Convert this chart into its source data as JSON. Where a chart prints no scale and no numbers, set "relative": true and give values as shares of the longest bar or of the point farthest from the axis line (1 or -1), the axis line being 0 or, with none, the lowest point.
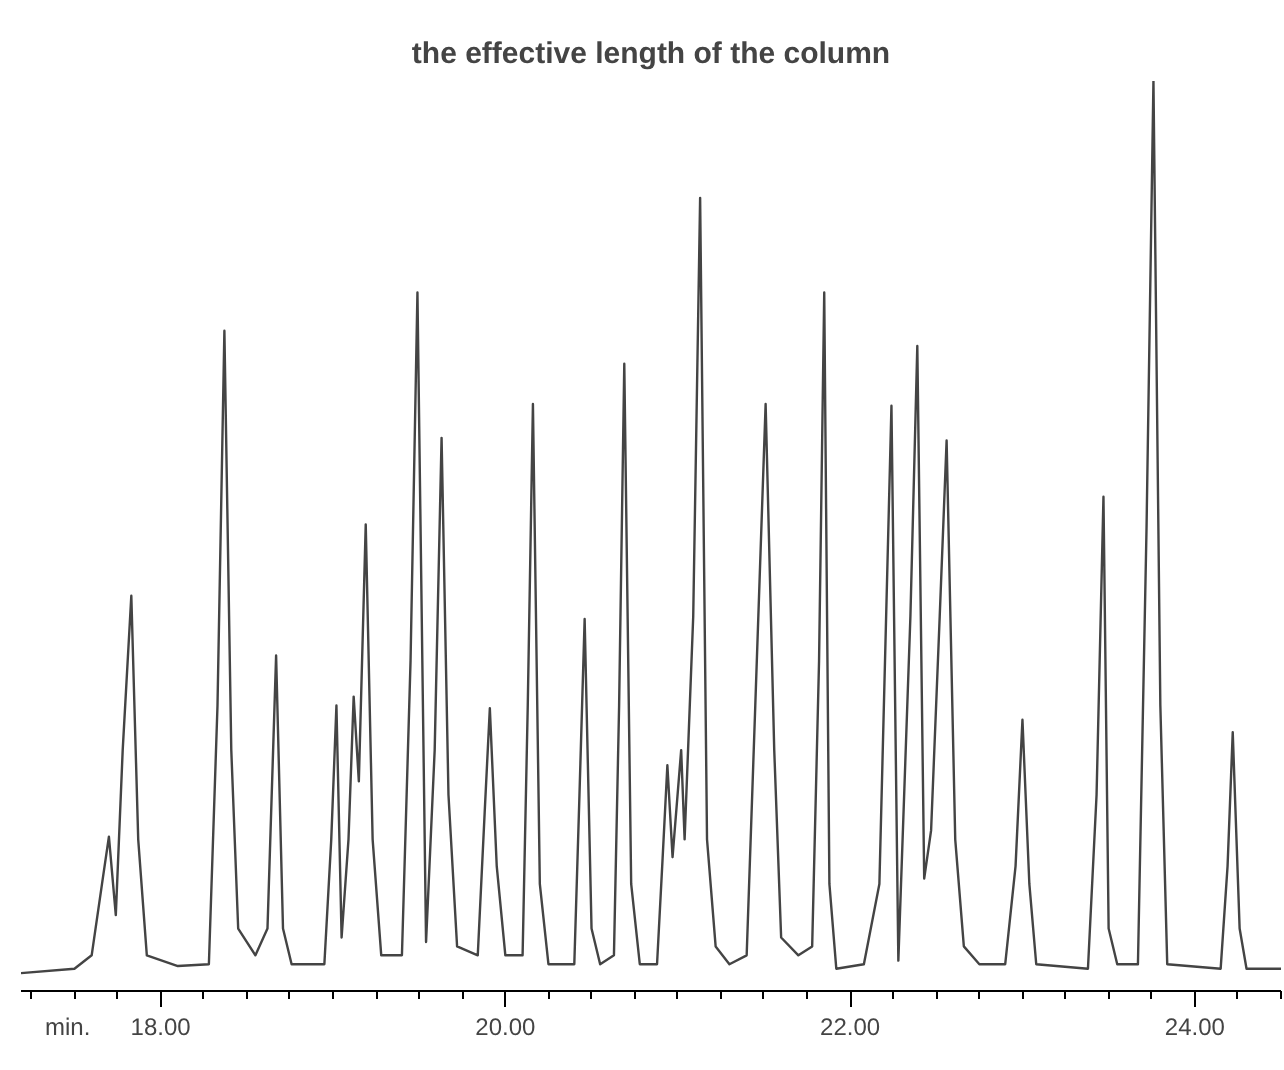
{
  "chart_data": {
    "type": "line",
    "title": "the effective length of the column",
    "xlabel": "min.",
    "relative": true,
    "color": "#444444",
    "grid": false,
    "xlim": [
      17.19,
      24.5
    ],
    "xticks": [
      {
        "value": 17.25,
        "label": null
      },
      {
        "value": 17.5,
        "label": null
      },
      {
        "value": 17.75,
        "label": null
      },
      {
        "value": 18,
        "label": "18.00"
      },
      {
        "value": 18.25,
        "label": null
      },
      {
        "value": 18.5,
        "label": null
      },
      {
        "value": 18.75,
        "label": null
      },
      {
        "value": 19,
        "label": null
      },
      {
        "value": 19.25,
        "label": null
      },
      {
        "value": 19.5,
        "label": null
      },
      {
        "value": 19.75,
        "label": null
      },
      {
        "value": 20,
        "label": "20.00"
      },
      {
        "value": 20.25,
        "label": null
      },
      {
        "value": 20.5,
        "label": null
      },
      {
        "value": 20.75,
        "label": null
      },
      {
        "value": 21,
        "label": null
      },
      {
        "value": 21.25,
        "label": null
      },
      {
        "value": 21.5,
        "label": null
      },
      {
        "value": 21.75,
        "label": null
      },
      {
        "value": 22,
        "label": "22.00"
      },
      {
        "value": 22.25,
        "label": null
      },
      {
        "value": 22.5,
        "label": null
      },
      {
        "value": 22.75,
        "label": null
      },
      {
        "value": 23,
        "label": null
      },
      {
        "value": 23.25,
        "label": null
      },
      {
        "value": 23.5,
        "label": null
      },
      {
        "value": 23.75,
        "label": null
      },
      {
        "value": 24,
        "label": "24.00"
      },
      {
        "value": 24.25,
        "label": null
      },
      {
        "value": 24.5,
        "label": null
      }
    ],
    "x": [
      17.19,
      17.5,
      17.6,
      17.66,
      17.7,
      17.74,
      17.78,
      17.83,
      17.87,
      17.92,
      18.1,
      18.28,
      18.33,
      18.37,
      18.41,
      18.45,
      18.55,
      18.62,
      18.67,
      18.71,
      18.76,
      18.95,
      18.99,
      19.02,
      19.05,
      19.09,
      19.12,
      19.15,
      19.19,
      19.23,
      19.28,
      19.4,
      19.45,
      19.49,
      19.54,
      19.59,
      19.63,
      19.67,
      19.72,
      19.84,
      19.88,
      19.91,
      19.95,
      20.0,
      20.1,
      20.13,
      20.16,
      20.2,
      20.25,
      20.4,
      20.43,
      20.46,
      20.5,
      20.55,
      20.63,
      20.66,
      20.69,
      20.73,
      20.78,
      20.88,
      20.91,
      20.94,
      20.97,
      21.02,
      21.04,
      21.09,
      21.13,
      21.17,
      21.22,
      21.3,
      21.4,
      21.45,
      21.51,
      21.56,
      21.6,
      21.7,
      21.78,
      21.82,
      21.85,
      21.88,
      21.92,
      22.08,
      22.17,
      22.24,
      22.28,
      22.35,
      22.39,
      22.43,
      22.47,
      22.52,
      22.56,
      22.61,
      22.66,
      22.75,
      22.9,
      22.96,
      23.0,
      23.04,
      23.08,
      23.38,
      23.43,
      23.47,
      23.5,
      23.55,
      23.67,
      23.72,
      23.76,
      23.8,
      23.84,
      24.15,
      24.19,
      24.22,
      24.26,
      24.3,
      24.5
    ],
    "values": [
      0.0,
      0.005,
      0.02,
      0.1,
      0.153,
      0.065,
      0.25,
      0.423,
      0.15,
      0.02,
      0.008,
      0.01,
      0.3,
      0.72,
      0.25,
      0.05,
      0.02,
      0.05,
      0.356,
      0.05,
      0.01,
      0.01,
      0.15,
      0.3,
      0.04,
      0.15,
      0.31,
      0.215,
      0.503,
      0.15,
      0.02,
      0.02,
      0.35,
      0.763,
      0.035,
      0.25,
      0.6,
      0.2,
      0.03,
      0.02,
      0.18,
      0.297,
      0.12,
      0.02,
      0.02,
      0.3,
      0.638,
      0.1,
      0.01,
      0.01,
      0.2,
      0.397,
      0.05,
      0.01,
      0.02,
      0.3,
      0.683,
      0.1,
      0.01,
      0.01,
      0.12,
      0.233,
      0.13,
      0.25,
      0.15,
      0.4,
      0.869,
      0.15,
      0.03,
      0.01,
      0.02,
      0.3,
      0.638,
      0.25,
      0.04,
      0.02,
      0.03,
      0.35,
      0.763,
      0.1,
      0.005,
      0.01,
      0.1,
      0.636,
      0.014,
      0.4,
      0.703,
      0.106,
      0.16,
      0.4,
      0.597,
      0.15,
      0.03,
      0.01,
      0.01,
      0.12,
      0.284,
      0.1,
      0.01,
      0.005,
      0.2,
      0.534,
      0.05,
      0.01,
      0.01,
      0.5,
      1.0,
      0.3,
      0.01,
      0.005,
      0.12,
      0.27,
      0.05,
      0.005,
      0.005
    ]
  }
}
